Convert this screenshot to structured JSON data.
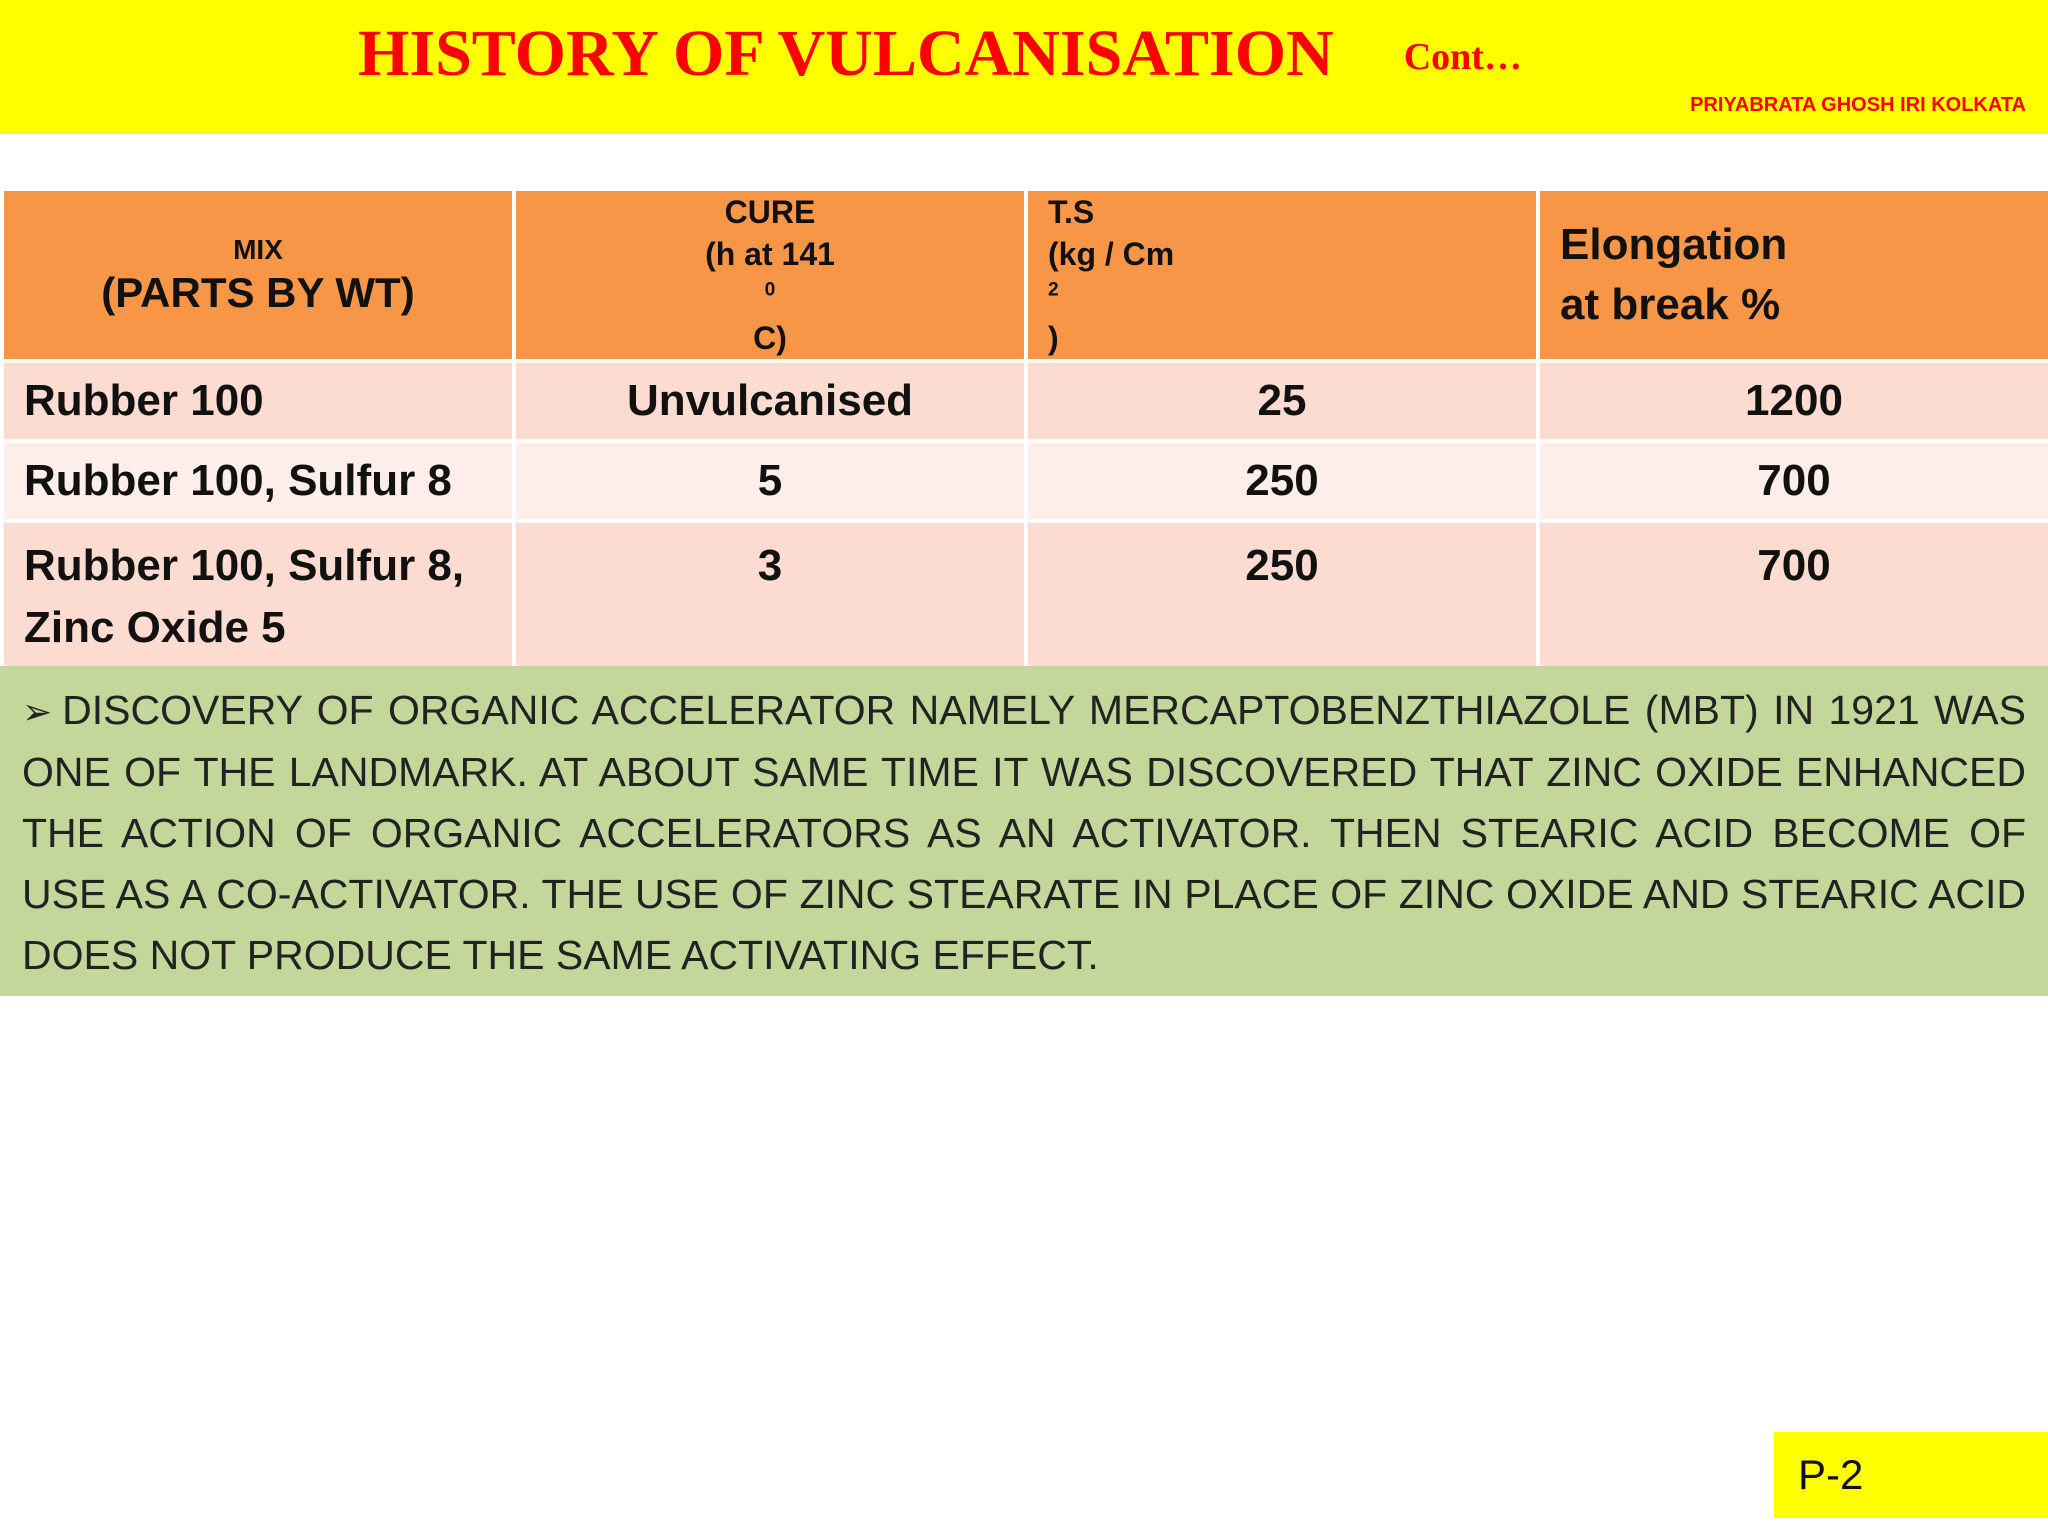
{
  "header": {
    "title": "HISTORY OF VULCANISATION",
    "cont": "Cont…",
    "author": "PRIYABRATA GHOSH IRI KOLKATA"
  },
  "table": {
    "headers": {
      "mix_line1": "MIX",
      "mix_line2": "(PARTS BY WT)",
      "cure_line1": "CURE",
      "cure_line2_pre": "(h at 141",
      "cure_line2_sup": "0",
      "cure_line2_post": "C)",
      "ts_line1": "T.S",
      "ts_line2_pre": "(kg / Cm",
      "ts_line2_sup": "2",
      "ts_line2_post": ")",
      "elong_line1": "Elongation",
      "elong_line2": "at break %"
    },
    "rows": [
      {
        "mix": "Rubber 100",
        "cure": "Unvulcanised",
        "ts": "25",
        "elongation": "1200"
      },
      {
        "mix": "Rubber 100, Sulfur 8",
        "cure": "5",
        "ts": "250",
        "elongation": "700"
      },
      {
        "mix_line1": "Rubber 100, Sulfur 8,",
        "mix_line2": "Zinc Oxide 5",
        "cure": "3",
        "ts": "250",
        "elongation": "700"
      }
    ]
  },
  "discovery": {
    "bullet": "➢",
    "text": "DISCOVERY OF ORGANIC ACCELERATOR NAMELY MERCAPTOBENZTHIAZOLE (MBT) IN 1921 WAS ONE OF THE LANDMARK. AT ABOUT SAME TIME IT WAS DISCOVERED THAT ZINC OXIDE ENHANCED THE ACTION OF ORGANIC ACCELERATORS AS AN ACTIVATOR. THEN STEARIC ACID BECOME OF USE AS A CO-ACTIVATOR. THE USE OF ZINC STEARATE IN PLACE OF ZINC OXIDE AND STEARIC ACID DOES NOT PRODUCE THE SAME ACTIVATING EFFECT."
  },
  "page_number": "P-2",
  "colors": {
    "banner": "#ffff00",
    "title": "#ff0000",
    "table_header": "#f79646",
    "row_dark": "#fcdcd0",
    "row_light": "#fdeeea",
    "discovery_bg": "#c4d79b"
  }
}
